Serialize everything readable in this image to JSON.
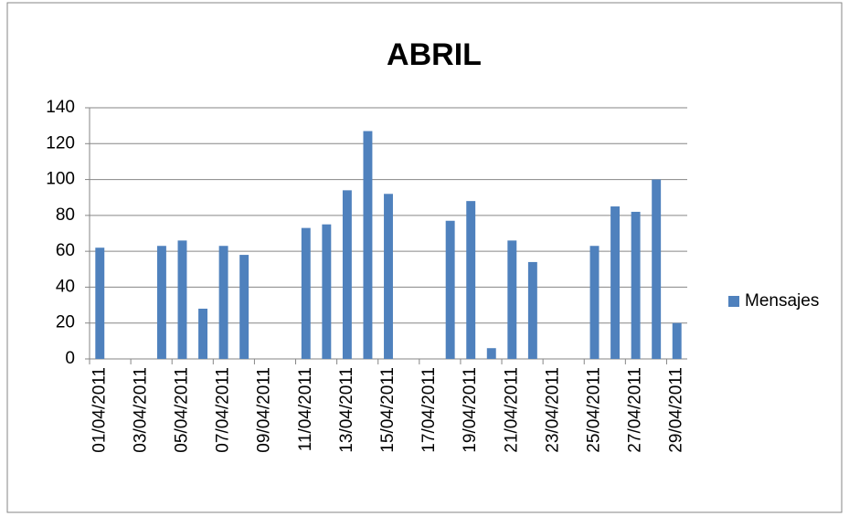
{
  "chart_data": {
    "type": "bar",
    "title": "ABRIL",
    "categories": [
      "01/04/2011",
      null,
      "03/04/2011",
      null,
      "05/04/2011",
      null,
      "07/04/2011",
      null,
      "09/04/2011",
      null,
      "11/04/2011",
      null,
      "13/04/2011",
      null,
      "15/04/2011",
      null,
      "17/04/2011",
      null,
      "19/04/2011",
      null,
      "21/04/2011",
      null,
      "23/04/2011",
      null,
      "25/04/2011",
      null,
      "27/04/2011",
      null,
      "29/04/2011"
    ],
    "series": [
      {
        "name": "Mensajes",
        "color": "#4f81bd",
        "values": [
          62,
          null,
          null,
          63,
          66,
          28,
          63,
          58,
          null,
          null,
          73,
          75,
          94,
          127,
          92,
          null,
          null,
          77,
          88,
          6,
          66,
          54,
          null,
          null,
          63,
          85,
          82,
          100,
          20
        ]
      }
    ],
    "ylim": [
      0,
      140
    ],
    "yticks": [
      0,
      20,
      40,
      60,
      80,
      100,
      120,
      140
    ],
    "grid": true,
    "legend": "right"
  }
}
